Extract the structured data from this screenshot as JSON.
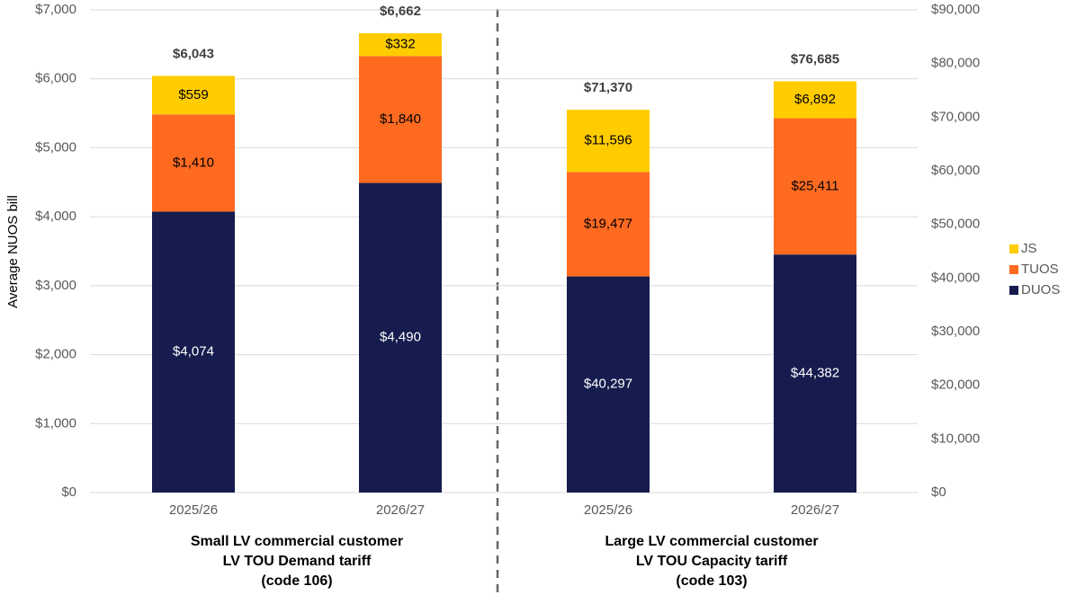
{
  "chart_data": [
    {
      "type": "bar",
      "stacked": true,
      "y_label": "Average NUOS bill",
      "group_label": [
        "Small LV commercial customer",
        "LV TOU Demand tariff",
        "(code 106)"
      ],
      "categories": [
        "2025/26",
        "2026/27"
      ],
      "ylim": [
        0,
        7000
      ],
      "yticks": [
        {
          "value": 0,
          "label": "$0"
        },
        {
          "value": 1000,
          "label": "$1,000"
        },
        {
          "value": 2000,
          "label": "$2,000"
        },
        {
          "value": 3000,
          "label": "$3,000"
        },
        {
          "value": 4000,
          "label": "$4,000"
        },
        {
          "value": 5000,
          "label": "$5,000"
        },
        {
          "value": 6000,
          "label": "$6,000"
        },
        {
          "value": 7000,
          "label": "$7,000"
        }
      ],
      "grid": true,
      "legend": "right",
      "series": [
        {
          "name": "DUOS",
          "color": "#161c4e",
          "values": [
            4074,
            4490
          ],
          "value_labels": [
            "$4,074",
            "$4,490"
          ]
        },
        {
          "name": "TUOS",
          "color": "#ff6a21",
          "values": [
            1410,
            1840
          ],
          "value_labels": [
            "$1,410",
            "$1,840"
          ]
        },
        {
          "name": "JS",
          "color": "#ffcc00",
          "values": [
            559,
            332
          ],
          "value_labels": [
            "$559",
            "$332"
          ]
        }
      ],
      "totals": [
        6043,
        6662
      ],
      "total_labels": [
        "$6,043",
        "$6,662"
      ]
    },
    {
      "type": "bar",
      "stacked": true,
      "group_label": [
        "Large LV commercial customer",
        "LV TOU Capacity tariff",
        "(code 103)"
      ],
      "categories": [
        "2025/26",
        "2026/27"
      ],
      "y2lim": [
        0,
        90000
      ],
      "y2ticks": [
        {
          "value": 0,
          "label": "$0"
        },
        {
          "value": 10000,
          "label": "$10,000"
        },
        {
          "value": 20000,
          "label": "$20,000"
        },
        {
          "value": 30000,
          "label": "$30,000"
        },
        {
          "value": 40000,
          "label": "$40,000"
        },
        {
          "value": 50000,
          "label": "$50,000"
        },
        {
          "value": 60000,
          "label": "$60,000"
        },
        {
          "value": 70000,
          "label": "$70,000"
        },
        {
          "value": 80000,
          "label": "$80,000"
        },
        {
          "value": 90000,
          "label": "$90,000"
        }
      ],
      "series": [
        {
          "name": "DUOS",
          "color": "#161c4e",
          "axis": "y2",
          "values": [
            40297,
            44382
          ],
          "value_labels": [
            "$40,297",
            "$44,382"
          ]
        },
        {
          "name": "TUOS",
          "color": "#ff6a21",
          "axis": "y2",
          "values": [
            19477,
            25411
          ],
          "value_labels": [
            "$19,477",
            "$25,411"
          ]
        },
        {
          "name": "JS",
          "color": "#ffcc00",
          "axis": "y2",
          "values": [
            11596,
            6892
          ],
          "value_labels": [
            "$11,596",
            "$6,892"
          ]
        }
      ],
      "totals": [
        71370,
        76685
      ],
      "total_labels": [
        "$71,370",
        "$76,685"
      ]
    }
  ]
}
